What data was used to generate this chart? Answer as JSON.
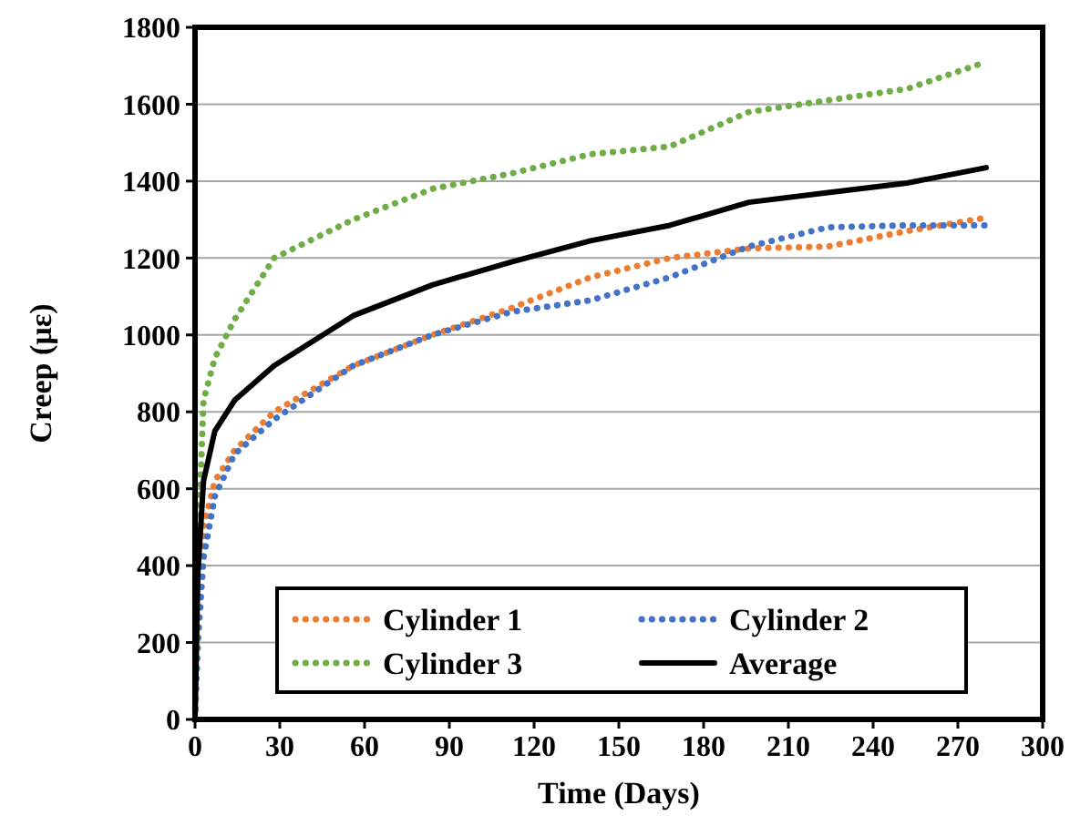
{
  "chart_data": {
    "type": "line",
    "xlabel": "Time (Days)",
    "ylabel": "Creep (µε)",
    "x": [
      0,
      1,
      3,
      7,
      14,
      28,
      56,
      84,
      112,
      140,
      168,
      196,
      224,
      252,
      280
    ],
    "xlim": [
      0,
      300
    ],
    "xticks": [
      0,
      30,
      60,
      90,
      120,
      150,
      180,
      210,
      240,
      270,
      300
    ],
    "ylim": [
      0,
      1800
    ],
    "yticks": [
      0,
      200,
      400,
      600,
      800,
      1000,
      1200,
      1400,
      1600,
      1800
    ],
    "grid": "y",
    "legend": "bottom",
    "series": [
      {
        "name": "Cylinder 1",
        "color": "#ed7d31",
        "line_style": "dotted",
        "values": [
          0,
          300,
          500,
          620,
          700,
          800,
          920,
          1000,
          1070,
          1150,
          1200,
          1225,
          1230,
          1270,
          1305
        ]
      },
      {
        "name": "Cylinder 2",
        "color": "#4472c4",
        "line_style": "dotted",
        "values": [
          0,
          200,
          420,
          580,
          690,
          780,
          920,
          1000,
          1060,
          1090,
          1150,
          1230,
          1280,
          1285,
          1285
        ]
      },
      {
        "name": "Cylinder 3",
        "color": "#70ad47",
        "line_style": "dotted",
        "values": [
          0,
          430,
          830,
          940,
          1040,
          1200,
          1300,
          1380,
          1420,
          1470,
          1490,
          1580,
          1610,
          1640,
          1710
        ]
      },
      {
        "name": "Average",
        "color": "#000000",
        "line_style": "solid",
        "values": [
          0,
          380,
          620,
          750,
          830,
          920,
          1050,
          1130,
          1190,
          1245,
          1285,
          1345,
          1370,
          1395,
          1435
        ]
      }
    ]
  }
}
